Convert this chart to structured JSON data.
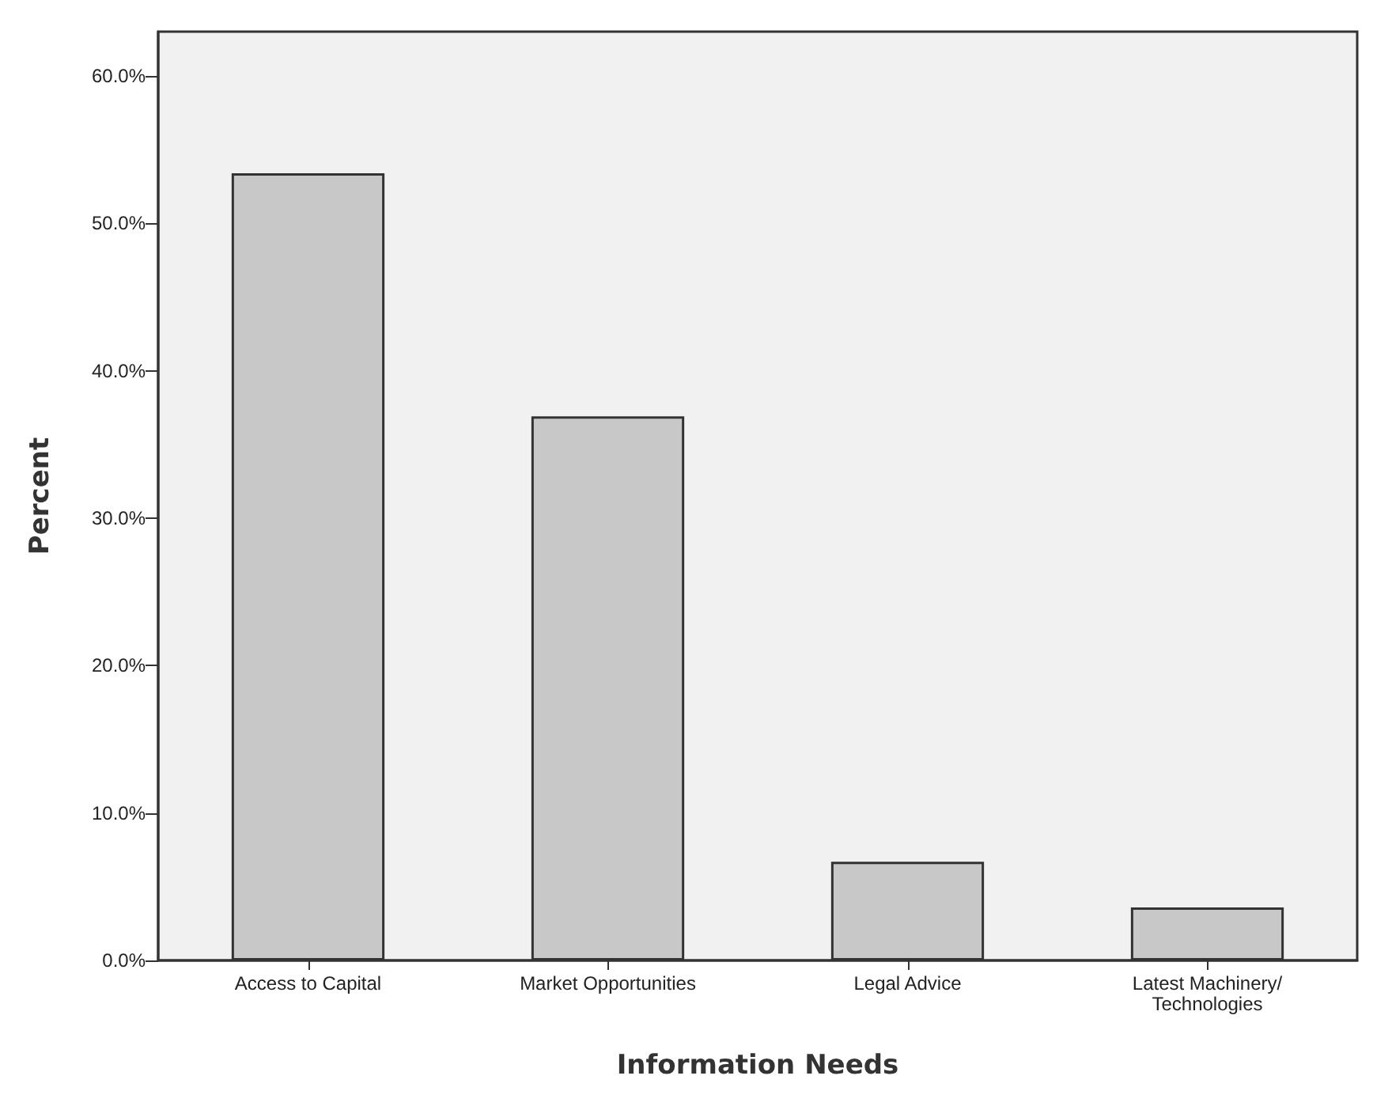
{
  "chart_data": {
    "type": "bar",
    "xlabel": "Information Needs",
    "ylabel": "Percent",
    "categories": [
      "Access to Capital",
      "Market Opportunities",
      "Legal Advice",
      "Latest Machinery/\nTechnologies"
    ],
    "values": [
      53.4,
      36.9,
      6.7,
      3.6
    ],
    "color": "#c8c8c8",
    "ylim": [
      0,
      63
    ],
    "yticks": [
      {
        "value": 0,
        "label": "0.0%"
      },
      {
        "value": 10,
        "label": "10.0%"
      },
      {
        "value": 20,
        "label": "20.0%"
      },
      {
        "value": 30,
        "label": "30.0%"
      },
      {
        "value": 40,
        "label": "40.0%"
      },
      {
        "value": 50,
        "label": "50.0%"
      },
      {
        "value": 60,
        "label": "60.0%"
      }
    ],
    "grid": false
  }
}
